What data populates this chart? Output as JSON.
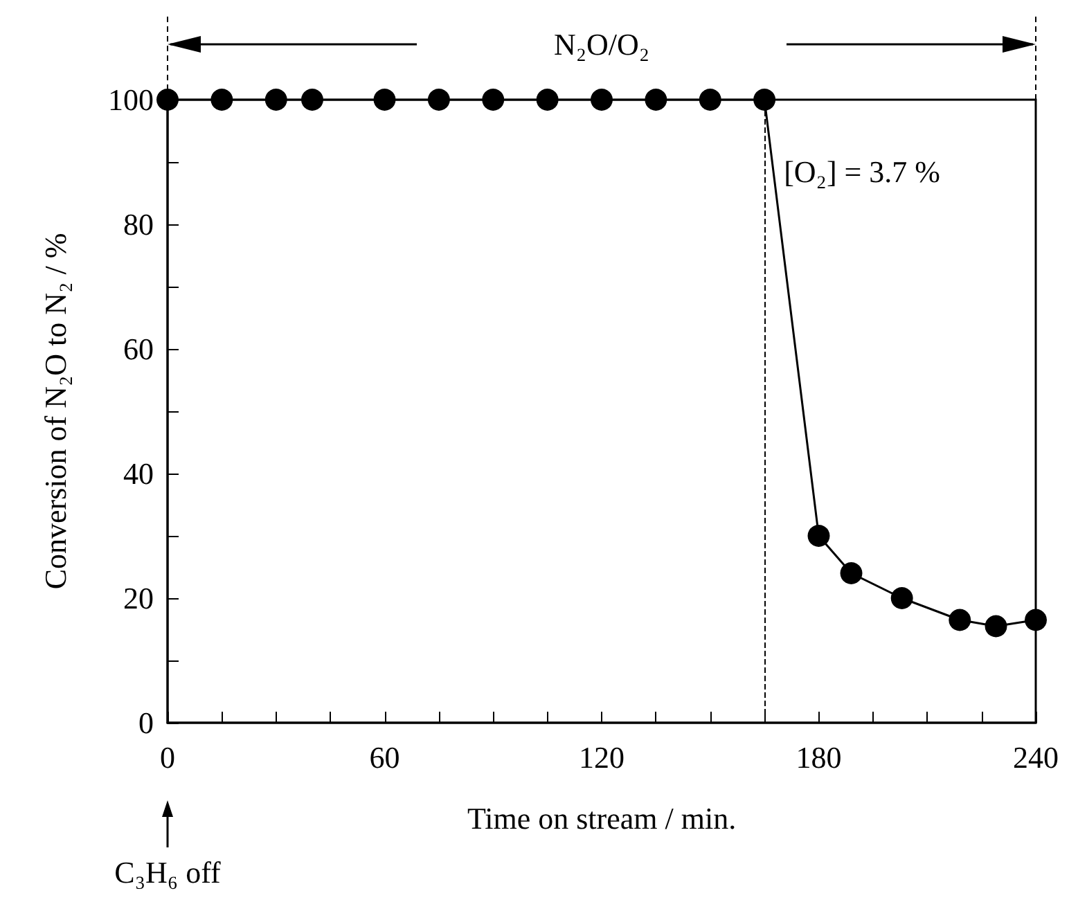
{
  "chart_data": {
    "type": "line",
    "xlabel": "Time on stream / min.",
    "ylabel": "Conversion of N₂O to N₂ / %",
    "x": [
      0,
      15,
      30,
      40,
      60,
      75,
      90,
      105,
      120,
      135,
      150,
      165,
      180,
      189,
      203,
      219,
      229,
      240
    ],
    "series": [
      {
        "color": "#000000",
        "values": [
          100,
          100,
          100,
          100,
          100,
          100,
          100,
          100,
          100,
          100,
          100,
          100,
          30,
          24,
          20,
          16.5,
          15.5,
          16.5
        ]
      }
    ],
    "xlim": [
      0,
      240
    ],
    "xticks": [
      0,
      60,
      120,
      180,
      240
    ],
    "ylim": [
      0,
      100
    ],
    "yticks": [
      0,
      20,
      40,
      60,
      80,
      100
    ],
    "marker": "circle",
    "line_style": "solid",
    "grid": false,
    "ref_lines": [
      {
        "axis": "x",
        "value": 165,
        "line_style": "dashed",
        "color": "#000000"
      }
    ],
    "annotations": [
      "N₂O/O₂",
      "[O₂] = 3.7 %",
      "C₃H₆ off"
    ]
  }
}
